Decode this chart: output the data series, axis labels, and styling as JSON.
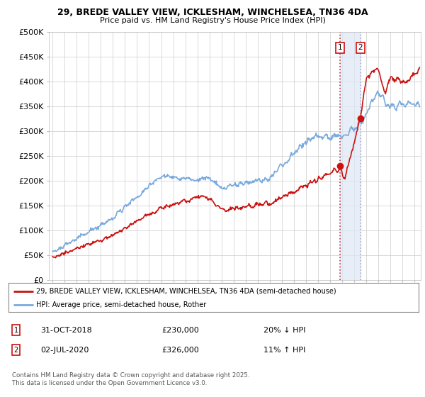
{
  "title1": "29, BREDE VALLEY VIEW, ICKLESHAM, WINCHELSEA, TN36 4DA",
  "title2": "Price paid vs. HM Land Registry's House Price Index (HPI)",
  "ylabel_ticks": [
    "£0",
    "£50K",
    "£100K",
    "£150K",
    "£200K",
    "£250K",
    "£300K",
    "£350K",
    "£400K",
    "£450K",
    "£500K"
  ],
  "ytick_vals": [
    0,
    50000,
    100000,
    150000,
    200000,
    250000,
    300000,
    350000,
    400000,
    450000,
    500000
  ],
  "xlim_start": 1994.7,
  "xlim_end": 2025.5,
  "ylim": [
    0,
    500000
  ],
  "sale1_date": 2018.83,
  "sale1_price": 230000,
  "sale1_label": "1",
  "sale2_date": 2020.5,
  "sale2_price": 326000,
  "sale2_label": "2",
  "hpi_color": "#7aaadd",
  "price_color": "#cc1111",
  "vline1_color": "#cc3333",
  "vline2_color": "#aaaacc",
  "shade_color": "#dde8f5",
  "legend_label1": "29, BREDE VALLEY VIEW, ICKLESHAM, WINCHELSEA, TN36 4DA (semi-detached house)",
  "legend_label2": "HPI: Average price, semi-detached house, Rother",
  "annotation1_date": "31-OCT-2018",
  "annotation1_price": "£230,000",
  "annotation1_hpi": "20% ↓ HPI",
  "annotation2_date": "02-JUL-2020",
  "annotation2_price": "£326,000",
  "annotation2_hpi": "11% ↑ HPI",
  "footer": "Contains HM Land Registry data © Crown copyright and database right 2025.\nThis data is licensed under the Open Government Licence v3.0.",
  "background_color": "#ffffff",
  "grid_color": "#cccccc"
}
